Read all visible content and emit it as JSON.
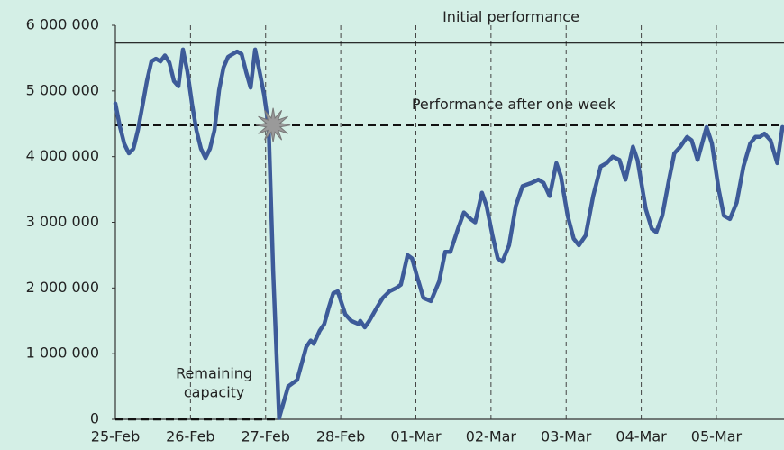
{
  "chart_data": {
    "type": "line",
    "x": [
      0,
      0.06,
      0.12,
      0.18,
      0.24,
      0.3,
      0.36,
      0.42,
      0.48,
      0.54,
      0.6,
      0.66,
      0.72,
      0.78,
      0.84,
      0.9,
      0.96,
      1.02,
      1.08,
      1.14,
      1.2,
      1.26,
      1.32,
      1.38,
      1.44,
      1.5,
      1.56,
      1.62,
      1.68,
      1.74,
      1.8,
      1.86,
      1.92,
      1.98,
      2.04,
      2.1,
      2.18,
      2.3,
      2.42,
      2.54,
      2.6,
      2.64,
      2.72,
      2.78,
      2.84,
      2.9,
      2.96,
      3.06,
      3.14,
      3.24,
      3.26,
      3.32,
      3.38,
      3.48,
      3.56,
      3.65,
      3.74,
      3.8,
      3.89,
      3.95,
      4.01,
      4.1,
      4.2,
      4.31,
      4.39,
      4.46,
      4.56,
      4.64,
      4.73,
      4.79,
      4.88,
      4.94,
      5.02,
      5.09,
      5.15,
      5.24,
      5.33,
      5.42,
      5.54,
      5.63,
      5.7,
      5.78,
      5.87,
      5.93,
      6.02,
      6.1,
      6.17,
      6.26,
      6.36,
      6.46,
      6.54,
      6.62,
      6.71,
      6.79,
      6.89,
      6.95,
      7.06,
      7.14,
      7.2,
      7.28,
      7.37,
      7.44,
      7.52,
      7.61,
      7.67,
      7.75,
      7.87,
      7.94,
      8.03,
      8.1,
      8.18,
      8.27,
      8.36,
      8.45,
      8.52,
      8.58,
      8.64,
      8.72,
      8.81,
      8.88
    ],
    "series": [
      {
        "color": "#3d5b99",
        "values": [
          4810000,
          4460000,
          4190000,
          4050000,
          4120000,
          4400000,
          4770000,
          5150000,
          5450000,
          5490000,
          5450000,
          5540000,
          5430000,
          5150000,
          5070000,
          5630000,
          5290000,
          4810000,
          4400000,
          4120000,
          3980000,
          4120000,
          4400000,
          5010000,
          5360000,
          5520000,
          5560000,
          5600000,
          5560000,
          5290000,
          5050000,
          5630000,
          5290000,
          4940000,
          4460000,
          2270000,
          20000,
          500000,
          600000,
          1100000,
          1200000,
          1150000,
          1350000,
          1450000,
          1700000,
          1920000,
          1950000,
          1600000,
          1500000,
          1450000,
          1500000,
          1400000,
          1500000,
          1700000,
          1850000,
          1950000,
          2000000,
          2050000,
          2500000,
          2450000,
          2200000,
          1850000,
          1800000,
          2100000,
          2550000,
          2550000,
          2900000,
          3150000,
          3050000,
          3000000,
          3450000,
          3250000,
          2800000,
          2450000,
          2400000,
          2650000,
          3250000,
          3550000,
          3600000,
          3650000,
          3600000,
          3400000,
          3900000,
          3700000,
          3100000,
          2750000,
          2650000,
          2800000,
          3400000,
          3850000,
          3900000,
          4000000,
          3950000,
          3650000,
          4150000,
          3950000,
          3200000,
          2900000,
          2850000,
          3100000,
          3650000,
          4050000,
          4150000,
          4300000,
          4250000,
          3950000,
          4450000,
          4200000,
          3500000,
          3100000,
          3050000,
          3300000,
          3850000,
          4200000,
          4300000,
          4300000,
          4350000,
          4250000,
          3900000,
          4450000
        ]
      }
    ],
    "xlim": [
      0,
      8.9
    ],
    "xticks": [
      {
        "value": 0,
        "label": "25-Feb"
      },
      {
        "value": 1,
        "label": "26-Feb"
      },
      {
        "value": 2,
        "label": "27-Feb"
      },
      {
        "value": 3,
        "label": "28-Feb"
      },
      {
        "value": 4,
        "label": "01-Mar"
      },
      {
        "value": 5,
        "label": "02-Mar"
      },
      {
        "value": 6,
        "label": "03-Mar"
      },
      {
        "value": 7,
        "label": "04-Mar"
      },
      {
        "value": 8,
        "label": "05-Mar"
      }
    ],
    "ylim": [
      0,
      6000000
    ],
    "yticks": [
      0,
      {
        "value": 1000000,
        "label": "1 000 000"
      },
      {
        "value": 2000000,
        "label": "2 000 000"
      },
      {
        "value": 3000000,
        "label": "3 000 000"
      },
      {
        "value": 4000000,
        "label": "4 000 000"
      },
      {
        "value": 5000000,
        "label": "5 000 000"
      },
      {
        "value": 6000000,
        "label": "6 000 000"
      }
    ],
    "grid": "x",
    "reference_lines": [
      {
        "label": "Initial performance",
        "value": 5730000,
        "style": "solid"
      },
      {
        "label": "Performance after one week",
        "value": 4480000,
        "style": "dashed"
      },
      {
        "label": [
          "Remaining",
          "capacity"
        ],
        "value": 0,
        "style": "dashed",
        "x_end": 2.15
      }
    ],
    "event_marker": {
      "x": 2.1,
      "value": 4480000
    }
  }
}
